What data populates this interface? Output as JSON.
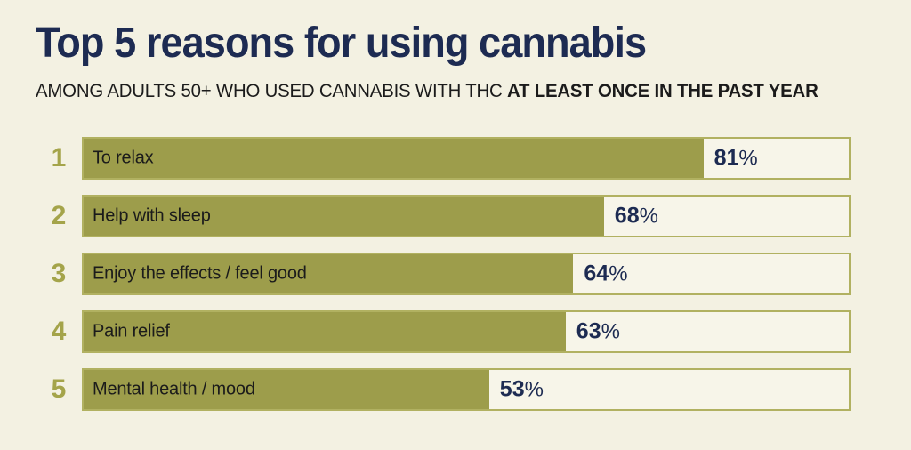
{
  "page": {
    "title": "Top 5 reasons for using cannabis",
    "subtitle": {
      "regular": "AMONG ADULTS 50+ WHO USED CANNABIS WITH THC ",
      "bold": "AT LEAST ONCE IN THE PAST YEAR"
    }
  },
  "chart_data": {
    "type": "bar",
    "orientation": "horizontal",
    "title": "Top 5 reasons for using cannabis",
    "subtitle": "AMONG ADULTS 50+ WHO USED CANNABIS WITH THC AT LEAST ONCE IN THE PAST YEAR",
    "ranks": [
      1,
      2,
      3,
      4,
      5
    ],
    "categories": [
      "To relax",
      "Help with sleep",
      "Enjoy the effects / feel good",
      "Pain relief",
      "Mental health / mood"
    ],
    "values": [
      81,
      68,
      64,
      63,
      53
    ],
    "value_suffix": "%",
    "xlim": [
      0,
      100
    ],
    "grid": false,
    "legend": false,
    "value_label_position": "outside-end-of-fill"
  },
  "colors": {
    "background": "#f3f1e2",
    "bar_fill": "#9d9d4b",
    "bar_border": "#b1b161",
    "track_fill": "#f7f5e9",
    "title_navy": "#1d2b52",
    "value_navy": "#1d2b52",
    "rank_olive": "#a4a44a",
    "label_text": "#1b1b1b"
  }
}
